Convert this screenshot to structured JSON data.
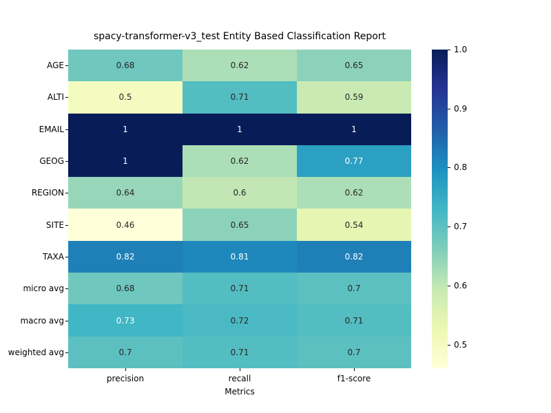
{
  "chart_data": {
    "type": "heatmap",
    "title": "spacy-transformer-v3_test Entity Based Classification Report",
    "xlabel": "Metrics",
    "columns": [
      "precision",
      "recall",
      "f1-score"
    ],
    "rows": [
      "AGE",
      "ALTI",
      "EMAIL",
      "GEOG",
      "REGION",
      "SITE",
      "TAXA",
      "micro avg",
      "macro avg",
      "weighted avg"
    ],
    "values": [
      [
        0.68,
        0.62,
        0.65
      ],
      [
        0.5,
        0.71,
        0.59
      ],
      [
        1,
        1,
        1
      ],
      [
        1,
        0.62,
        0.77
      ],
      [
        0.64,
        0.6,
        0.62
      ],
      [
        0.46,
        0.65,
        0.54
      ],
      [
        0.82,
        0.81,
        0.82
      ],
      [
        0.68,
        0.71,
        0.7
      ],
      [
        0.73,
        0.72,
        0.71
      ],
      [
        0.7,
        0.71,
        0.7
      ]
    ],
    "labels": [
      [
        "0.68",
        "0.62",
        "0.65"
      ],
      [
        "0.5",
        "0.71",
        "0.59"
      ],
      [
        "1",
        "1",
        "1"
      ],
      [
        "1",
        "0.62",
        "0.77"
      ],
      [
        "0.64",
        "0.6",
        "0.62"
      ],
      [
        "0.46",
        "0.65",
        "0.54"
      ],
      [
        "0.82",
        "0.81",
        "0.82"
      ],
      [
        "0.68",
        "0.71",
        "0.7"
      ],
      [
        "0.73",
        "0.72",
        "0.71"
      ],
      [
        "0.7",
        "0.71",
        "0.7"
      ]
    ],
    "colormap": "YlGnBu",
    "colormap_stops": [
      "#ffffd9",
      "#edf8b1",
      "#c7e9b4",
      "#7fcdbb",
      "#41b6c4",
      "#1d91c0",
      "#225ea8",
      "#253494",
      "#081d58"
    ],
    "vmin": 0.46,
    "vmax": 1.0,
    "annot_dark_color": "#262626",
    "annot_white_color": "#ffffff",
    "annot_white_threshold": 0.73,
    "colorbar_ticks": [
      1.0,
      0.9,
      0.8,
      0.7,
      0.6,
      0.5
    ],
    "colorbar_tick_labels": [
      "1.0",
      "0.9",
      "0.8",
      "0.7",
      "0.6",
      "0.5"
    ],
    "legend_position": "right",
    "grid": false,
    "background": "#ffffff"
  }
}
